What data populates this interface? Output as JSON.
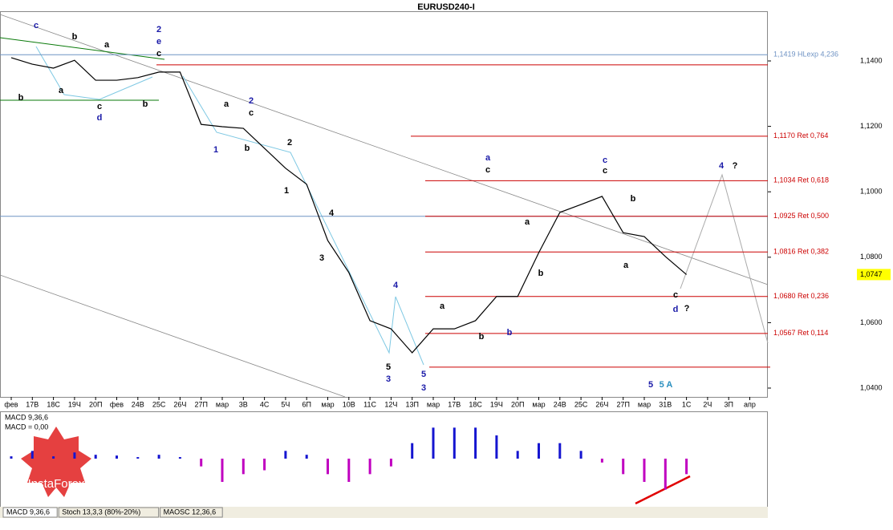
{
  "chart_data": [
    {
      "type": "line",
      "title": "EURUSD240-I",
      "categories": [
        "фев",
        "17В",
        "18С",
        "19Ч",
        "20П",
        "фев",
        "24В",
        "25С",
        "26Ч",
        "27П",
        "мар",
        "3В",
        "4С",
        "5Ч",
        "6П",
        "мар",
        "10В",
        "11С",
        "12Ч",
        "13П",
        "мар",
        "17В",
        "18С",
        "19Ч",
        "20П",
        "мар",
        "24В",
        "25С",
        "26Ч",
        "27П",
        "мар",
        "31В",
        "1С",
        "2Ч",
        "3П",
        "апр"
      ],
      "values": [
        1.141,
        1.139,
        1.1378,
        1.1402,
        1.1341,
        1.1341,
        1.1349,
        1.1366,
        1.1366,
        1.1206,
        1.1199,
        1.1194,
        1.1133,
        1.1072,
        1.1023,
        1.0851,
        1.0753,
        1.0606,
        1.0581,
        1.0508,
        1.0581,
        1.0581,
        1.0606,
        1.068,
        1.068,
        1.0814,
        1.0937,
        1.0961,
        1.0986,
        1.0875,
        1.0863,
        1.0802,
        1.0747,
        null,
        null,
        null
      ],
      "color": "#000000",
      "ylim": [
        1.0373,
        1.1552
      ],
      "yticks": [
        {
          "value": 1.14,
          "label": "1,1400"
        },
        {
          "value": 1.12,
          "label": "1,1200"
        },
        {
          "value": 1.1,
          "label": "1,1000"
        },
        {
          "value": 1.08,
          "label": "1,0800"
        },
        {
          "value": 1.06,
          "label": "1,0600"
        },
        {
          "value": 1.04,
          "label": "1,0400"
        }
      ],
      "current": {
        "value": 1.0747,
        "label": "1,0747"
      },
      "levels": [
        {
          "value": 1.1419,
          "label": "1,1419 HLexp 4,236",
          "color": "#6f93c4"
        },
        {
          "value": 1.1388,
          "color": "#cc0000"
        },
        {
          "value": 1.117,
          "label": "1,1170 Ret 0,764",
          "color": "#cc0000"
        },
        {
          "value": 1.1034,
          "label": "1,1034 Ret 0,618",
          "color": "#cc0000"
        },
        {
          "value": 1.0925,
          "color": "#6f93c4"
        },
        {
          "value": 1.0925,
          "label": "1,0925 Ret 0,500",
          "color": "#cc0000"
        },
        {
          "value": 1.0816,
          "label": "1,0816 Ret 0,382",
          "color": "#cc0000"
        },
        {
          "value": 1.068,
          "label": "1,0680 Ret 0,236",
          "color": "#cc0000"
        },
        {
          "value": 1.0567,
          "label": "1,0567 Ret 0,114",
          "color": "#cc0000"
        },
        {
          "value": 1.0464,
          "color": "#cc0000"
        }
      ],
      "annotations": [
        {
          "text": "c",
          "color": "#1a1aa8"
        },
        {
          "text": "b",
          "color": "#000"
        },
        {
          "text": "a",
          "color": "#000"
        },
        {
          "text": "2",
          "color": "#1a1aa8"
        },
        {
          "text": "e",
          "color": "#1a1aa8"
        },
        {
          "text": "c",
          "color": "#000"
        },
        {
          "text": "b",
          "color": "#000"
        },
        {
          "text": "a",
          "color": "#000"
        },
        {
          "text": "c",
          "color": "#000"
        },
        {
          "text": "d",
          "color": "#1a1aa8"
        },
        {
          "text": "b",
          "color": "#000"
        },
        {
          "text": "a",
          "color": "#000"
        },
        {
          "text": "2",
          "color": "#1a1aa8"
        },
        {
          "text": "c",
          "color": "#000"
        },
        {
          "text": "1",
          "color": "#1a1aa8"
        },
        {
          "text": "b",
          "color": "#000"
        },
        {
          "text": "2",
          "color": "#000"
        },
        {
          "text": "1",
          "color": "#000"
        },
        {
          "text": "4",
          "color": "#000"
        },
        {
          "text": "3",
          "color": "#000"
        },
        {
          "text": "5",
          "color": "#000"
        },
        {
          "text": "3",
          "color": "#1a1aa8"
        },
        {
          "text": "4",
          "color": "#1a1aa8"
        },
        {
          "text": "5",
          "color": "#1a1aa8"
        },
        {
          "text": "3",
          "color": "#1a1aa8"
        },
        {
          "text": "a",
          "color": "#000"
        },
        {
          "text": "b",
          "color": "#000"
        },
        {
          "text": "b",
          "color": "#1a1aa8"
        },
        {
          "text": "a",
          "color": "#1a1aa8"
        },
        {
          "text": "c",
          "color": "#000"
        },
        {
          "text": "a",
          "color": "#000"
        },
        {
          "text": "b",
          "color": "#000"
        },
        {
          "text": "c",
          "color": "#1a1aa8"
        },
        {
          "text": "c",
          "color": "#000"
        },
        {
          "text": "b",
          "color": "#000"
        },
        {
          "text": "a",
          "color": "#000"
        },
        {
          "text": "4",
          "color": "#1a1aa8"
        },
        {
          "text": "?",
          "color": "#000"
        },
        {
          "text": "c",
          "color": "#000"
        },
        {
          "text": "d",
          "color": "#1a1aa8"
        },
        {
          "text": "?",
          "color": "#000"
        },
        {
          "text": "5",
          "color": "#1a1aa8"
        },
        {
          "text": "5 A",
          "color": "#2a8fbf"
        }
      ]
    },
    {
      "type": "bar",
      "title": "MACD 9,36,6",
      "subtitle": "MACD = 0,00",
      "color": "#c000c0",
      "color_pos": "#1515d0",
      "ylim": [
        -0.006,
        0.006
      ],
      "values": [
        0.0003,
        0.001,
        0.0003,
        0.0008,
        0.0005,
        0.0004,
        0.0002,
        0.0005,
        0.0002,
        -0.001,
        -0.003,
        -0.002,
        -0.0015,
        0.001,
        0.0005,
        -0.002,
        -0.003,
        -0.002,
        -0.001,
        0.002,
        0.004,
        0.004,
        0.004,
        0.003,
        0.001,
        0.002,
        0.002,
        0.001,
        -0.0005,
        -0.002,
        -0.003,
        -0.004,
        -0.002,
        null,
        null,
        null
      ]
    }
  ],
  "tabs": [
    "MACD 9,36,6",
    "Stoch 13,3,3 (80%-20%)",
    "MAOSC 12,36,6"
  ],
  "logo": "InstaForex"
}
